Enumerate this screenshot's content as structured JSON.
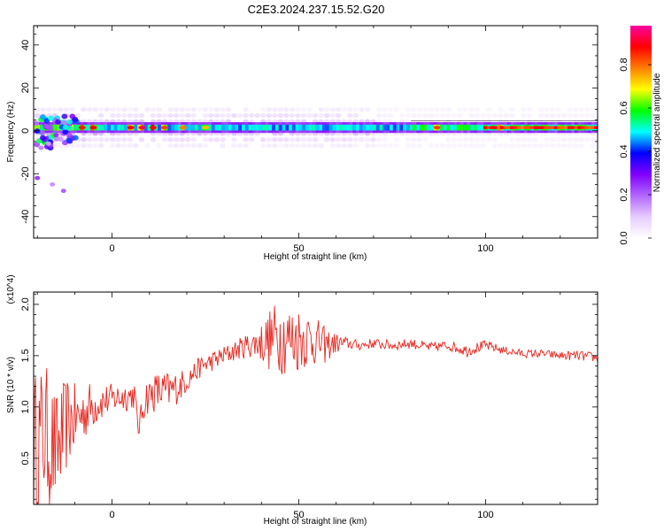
{
  "title": "C2E3.2024.237.15.52.G20",
  "chart_data": [
    {
      "type": "heatmap",
      "xlabel": "Height of straight line (km)",
      "ylabel": "Frequency (Hz)",
      "xlim": [
        -21,
        130
      ],
      "ylim": [
        -50,
        49
      ],
      "xticks": [
        0,
        50,
        100
      ],
      "yticks": [
        -40,
        -20,
        0,
        20,
        40
      ],
      "colorbar": {
        "label": "Normalized spectral amplitude",
        "range": [
          0,
          0.98
        ],
        "ticks": [
          0.0,
          0.2,
          0.4,
          0.6,
          0.8
        ],
        "colormap": [
          "#ffffff",
          "#e6ccff",
          "#b266ff",
          "#8000ff",
          "#0000ff",
          "#00ffff",
          "#00ff00",
          "#ffff00",
          "#ff7f00",
          "#ff0000",
          "#ff00a0"
        ]
      },
      "band": {
        "center_freq_hz": 1.5,
        "half_width_hz": 2.5
      },
      "hotspots": [
        {
          "x": -12,
          "amp": 0.92
        },
        {
          "x": -8,
          "amp": 0.88
        },
        {
          "x": -5,
          "amp": 0.9
        },
        {
          "x": 5,
          "amp": 0.9
        },
        {
          "x": 8,
          "amp": 0.95
        },
        {
          "x": 11,
          "amp": 0.9
        },
        {
          "x": 14,
          "amp": 0.85
        },
        {
          "x": 19,
          "amp": 0.8
        },
        {
          "x": 25,
          "amp": 0.75
        },
        {
          "x": 87,
          "amp": 0.85
        },
        {
          "x": 104,
          "amp": 0.9
        }
      ],
      "scatter": [
        {
          "x": -20,
          "y": -22
        },
        {
          "x": -16,
          "y": -25
        },
        {
          "x": -13,
          "y": -28
        },
        {
          "x": -19,
          "y": -8
        },
        {
          "x": -17,
          "y": -6
        },
        {
          "x": -15,
          "y": -2
        }
      ]
    },
    {
      "type": "line",
      "xlabel": "Height of straight line (km)",
      "ylabel": "SNR (10 * v/v)",
      "yscale_label": "(x10^4)",
      "xlim": [
        -21,
        130
      ],
      "ylim": [
        0.05,
        2.12
      ],
      "xticks": [
        0,
        50,
        100
      ],
      "yticks": [
        0.5,
        1.0,
        1.5,
        2.0
      ],
      "series": [
        {
          "color": "#e8261f",
          "x": [
            -21,
            -18,
            -15,
            -12,
            -9,
            -6,
            -3,
            0,
            3,
            6,
            7,
            9,
            12,
            15,
            18,
            21,
            24,
            27,
            30,
            33,
            36,
            39,
            42,
            45,
            48,
            51,
            54,
            57,
            60,
            63,
            66,
            70,
            75,
            80,
            85,
            90,
            95,
            100,
            105,
            110,
            115,
            120,
            125,
            130
          ],
          "y": [
            0.6,
            0.75,
            0.55,
            0.85,
            0.9,
            1.0,
            1.05,
            1.08,
            1.1,
            1.12,
            0.78,
            1.1,
            1.15,
            1.15,
            1.2,
            1.3,
            1.4,
            1.45,
            1.5,
            1.55,
            1.6,
            1.62,
            1.65,
            1.7,
            1.65,
            1.68,
            1.65,
            1.6,
            1.62,
            1.62,
            1.6,
            1.62,
            1.6,
            1.62,
            1.58,
            1.6,
            1.55,
            1.6,
            1.55,
            1.52,
            1.52,
            1.5,
            1.5,
            1.48
          ],
          "noise_amplitude": [
            0.75,
            0.7,
            0.6,
            0.45,
            0.3,
            0.25,
            0.18,
            0.15,
            0.15,
            0.14,
            0.1,
            0.18,
            0.2,
            0.2,
            0.15,
            0.12,
            0.1,
            0.1,
            0.1,
            0.1,
            0.12,
            0.15,
            0.3,
            0.38,
            0.35,
            0.32,
            0.25,
            0.18,
            0.1,
            0.06,
            0.05,
            0.05,
            0.05,
            0.05,
            0.05,
            0.05,
            0.06,
            0.05,
            0.04,
            0.04,
            0.04,
            0.04,
            0.05,
            0.05
          ]
        }
      ]
    }
  ]
}
